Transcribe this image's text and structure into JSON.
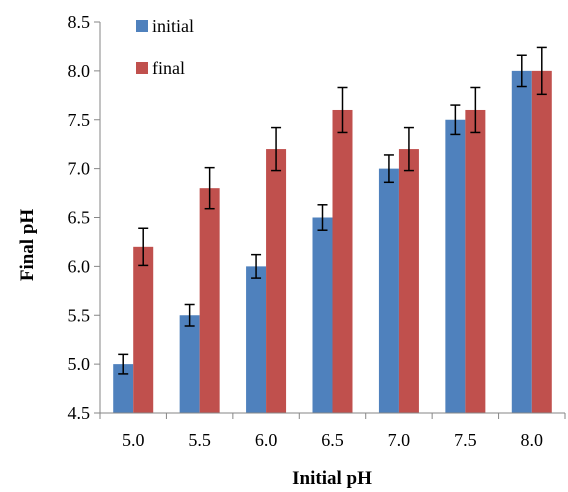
{
  "chart_data": {
    "type": "bar",
    "categories": [
      "5.0",
      "5.5",
      "6.0",
      "6.5",
      "7.0",
      "7.5",
      "8.0"
    ],
    "series": [
      {
        "name": "initial",
        "color": "#4f81bd",
        "values": [
          5.0,
          5.5,
          6.0,
          6.5,
          7.0,
          7.5,
          8.0
        ],
        "errors": [
          0.1,
          0.11,
          0.12,
          0.13,
          0.14,
          0.15,
          0.16
        ]
      },
      {
        "name": "final",
        "color": "#c0504d",
        "values": [
          6.2,
          6.8,
          7.2,
          7.6,
          7.2,
          7.6,
          8.0
        ],
        "errors": [
          0.19,
          0.21,
          0.22,
          0.23,
          0.22,
          0.23,
          0.24
        ]
      }
    ],
    "xlabel": "Initial pH",
    "ylabel": "Final pH",
    "ylim": [
      4.5,
      8.5
    ],
    "yticks": [
      "4.5",
      "5.0",
      "5.5",
      "6.0",
      "6.5",
      "7.0",
      "7.5",
      "8.0",
      "8.5"
    ],
    "legend_position": "top-left",
    "grid": false
  }
}
